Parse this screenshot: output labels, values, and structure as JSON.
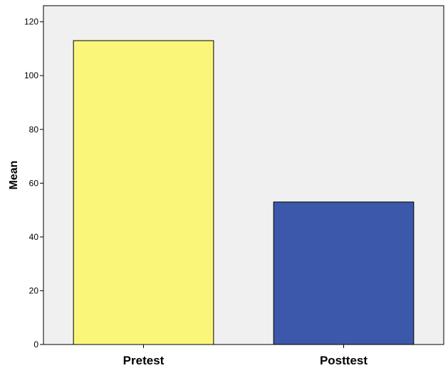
{
  "chart_data": {
    "type": "bar",
    "categories": [
      "Pretest",
      "Posttest"
    ],
    "values": [
      113,
      53
    ],
    "colors": [
      "#faf67a",
      "#3c58ab"
    ],
    "background": "#f0f0f0",
    "title": "",
    "xlabel": "",
    "ylabel": "Mean",
    "ylim": [
      0,
      126
    ],
    "yticks": [
      0,
      20,
      40,
      60,
      80,
      100,
      120
    ],
    "grid": false,
    "legend": "none"
  }
}
